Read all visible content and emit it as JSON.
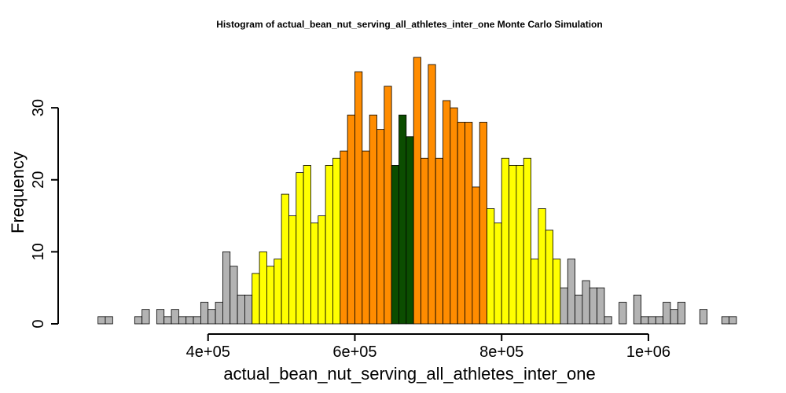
{
  "chart_data": {
    "type": "histogram",
    "title": "Histogram of  actual_bean_nut_serving_all_athletes_inter_one  Monte Carlo Simulation",
    "xlabel": "actual_bean_nut_serving_all_athletes_inter_one",
    "ylabel": "Frequency",
    "x_ticks": [
      400000,
      600000,
      800000,
      1000000
    ],
    "x_tick_labels": [
      "4e+05",
      "6e+05",
      "8e+05",
      "1e+06"
    ],
    "y_ticks": [
      0,
      10,
      20,
      30
    ],
    "y_tick_labels": [
      "0",
      "10",
      "20",
      "30"
    ],
    "xlim": [
      230000,
      1120000
    ],
    "ylim": [
      0,
      37
    ],
    "bin_width": 10000,
    "bin_start": 250000,
    "counts": [
      1,
      1,
      0,
      0,
      0,
      1,
      2,
      0,
      2,
      1,
      2,
      1,
      1,
      1,
      3,
      2,
      3,
      10,
      8,
      4,
      4,
      7,
      10,
      8,
      9,
      18,
      15,
      21,
      22,
      14,
      15,
      22,
      23,
      24,
      29,
      35,
      24,
      29,
      27,
      33,
      22,
      29,
      26,
      37,
      23,
      36,
      23,
      31,
      30,
      28,
      28,
      19,
      28,
      16,
      14,
      23,
      22,
      22,
      23,
      9,
      16,
      13,
      9,
      5,
      9,
      4,
      6,
      5,
      5,
      1,
      0,
      3,
      0,
      4,
      1,
      1,
      1,
      3,
      2,
      3,
      0,
      0,
      2,
      0,
      0,
      1,
      1
    ],
    "colors": {
      "tail": "#b3b3b3",
      "outer": "#ffff00",
      "inner": "#ff8c00",
      "center": "#0b4d00"
    },
    "color_bands": [
      {
        "from": 250000,
        "to": 460000,
        "color": "tail"
      },
      {
        "from": 460000,
        "to": 580000,
        "color": "outer"
      },
      {
        "from": 580000,
        "to": 650000,
        "color": "inner"
      },
      {
        "from": 650000,
        "to": 680000,
        "color": "center"
      },
      {
        "from": 680000,
        "to": 780000,
        "color": "inner"
      },
      {
        "from": 780000,
        "to": 880000,
        "color": "outer"
      },
      {
        "from": 880000,
        "to": 1120000,
        "color": "tail"
      }
    ],
    "grid": false,
    "legend": "none"
  }
}
